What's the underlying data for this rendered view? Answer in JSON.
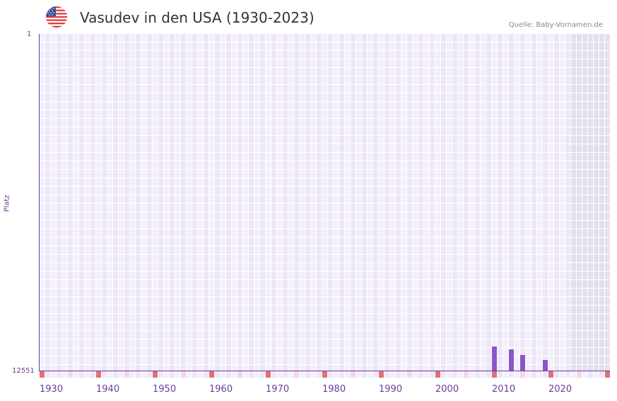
{
  "header": {
    "title": "Vasudev in den USA (1930-2023)",
    "source": "Quelle: Baby-Vornamen.de",
    "flag_icon": "us-flag-icon"
  },
  "colors": {
    "bar": "#8b54c7",
    "axis": "#6a3d9a",
    "decade_marker": "#e07078",
    "half_decade_marker": "#f5d6de",
    "grid_cell_a": "#f3effb",
    "grid_cell_b": "#ece6f7",
    "future_shade": "#e4dfee"
  },
  "chart_data": {
    "type": "bar",
    "title": "Vasudev in den USA (1930-2023)",
    "xlabel": "",
    "ylabel": "Platz",
    "y_inverted": true,
    "ylim": [
      1,
      12551
    ],
    "y_tick_labels": [
      "1",
      "12551"
    ],
    "x_tick_labels": [
      "1930",
      "1940",
      "1950",
      "1960",
      "1970",
      "1980",
      "1990",
      "2000",
      "2010",
      "2020"
    ],
    "xlim": [
      1930,
      2030
    ],
    "grid": true,
    "legend": null,
    "categories": [
      "2010",
      "2013",
      "2015",
      "2019"
    ],
    "values": [
      11630,
      11735,
      11946,
      12130
    ],
    "series": [
      {
        "name": "Platz",
        "x": [
          2010,
          2013,
          2015,
          2019
        ],
        "values": [
          11630,
          11735,
          11946,
          12130
        ]
      }
    ],
    "annotations": [
      "Quelle: Baby-Vornamen.de"
    ]
  }
}
